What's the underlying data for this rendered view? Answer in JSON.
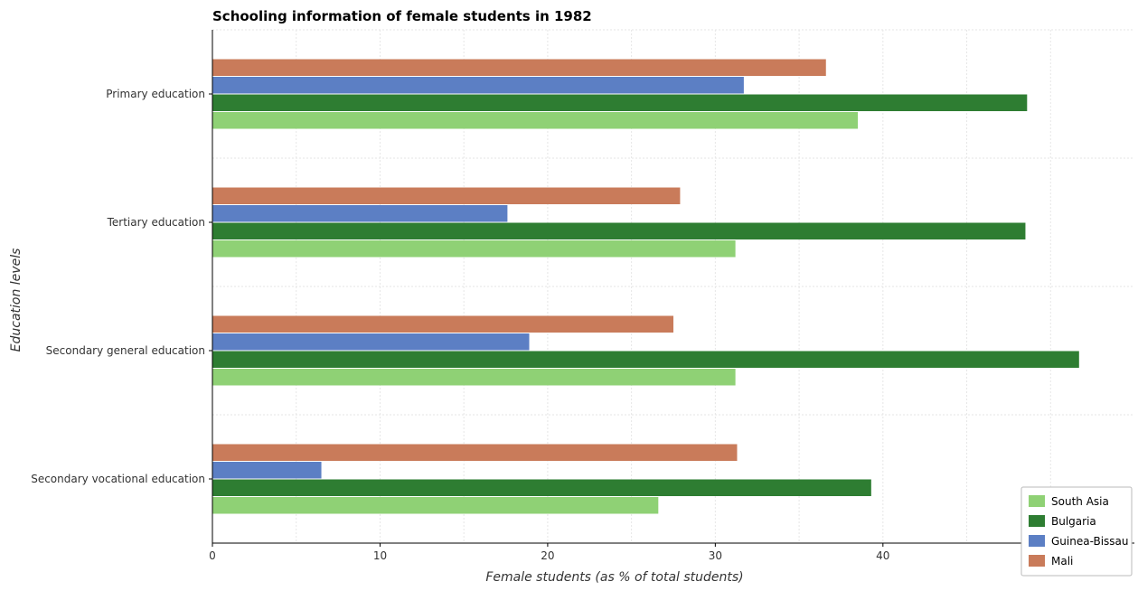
{
  "chart_data": {
    "type": "bar",
    "orientation": "horizontal",
    "title": "Schooling information of female students in 1982",
    "xlabel": "Female students (as % of total students)",
    "ylabel": "Education levels",
    "categories": [
      "Primary education",
      "Tertiary education",
      "Secondary general education",
      "Secondary vocational education"
    ],
    "series": [
      {
        "name": "South Asia",
        "color": "#8fd175",
        "values": [
          38.5,
          31.2,
          31.2,
          26.6
        ]
      },
      {
        "name": "Bulgaria",
        "color": "#2e7d32",
        "values": [
          48.6,
          48.5,
          51.7,
          39.3
        ]
      },
      {
        "name": "Guinea-Bissau",
        "color": "#5c7fc4",
        "values": [
          31.7,
          17.6,
          18.9,
          6.5
        ]
      },
      {
        "name": "Mali",
        "color": "#c97b5a",
        "values": [
          36.6,
          27.9,
          27.5,
          31.3
        ]
      }
    ],
    "xlim": [
      0,
      55
    ],
    "xticks": [
      0,
      10,
      20,
      30,
      40,
      50
    ],
    "grid": true,
    "legend_position": "bottom-right"
  }
}
